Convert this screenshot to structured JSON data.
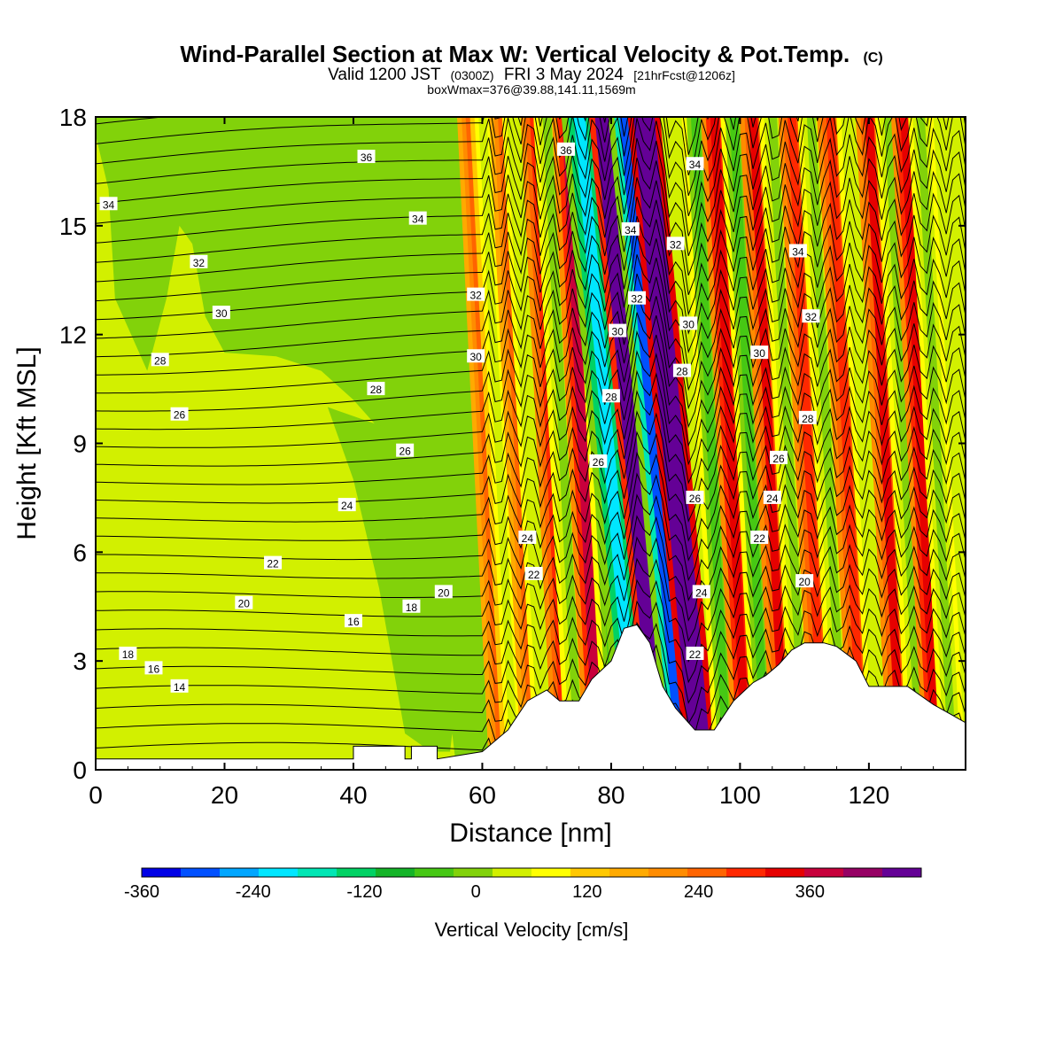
{
  "chart_data": {
    "type": "heatmap",
    "title": "Wind-Parallel Section at Max W: Vertical Velocity & Pot.Temp.",
    "title_mark": "(C)",
    "subtitle_parts": [
      "Valid 1200 JST",
      "(0300Z)",
      "FRI 3 May 2024",
      "[21hrFcst@1206z]"
    ],
    "subtitle2": "boxWmax=376@39.88,141.11,1569m",
    "xlabel": "Distance [nm]",
    "ylabel": "Height [Kft MSL]",
    "xlim": [
      0,
      135
    ],
    "ylim": [
      0,
      18
    ],
    "xticks": [
      0,
      20,
      40,
      60,
      80,
      100,
      120
    ],
    "yticks": [
      0,
      3,
      6,
      9,
      12,
      15,
      18
    ],
    "terrain": [
      [
        0,
        0.3
      ],
      [
        40,
        0.3
      ],
      [
        40,
        0.65
      ],
      [
        48,
        0.65
      ],
      [
        48,
        0.3
      ],
      [
        49,
        0.3
      ],
      [
        49,
        0.65
      ],
      [
        53,
        0.65
      ],
      [
        53,
        0.3
      ],
      [
        60,
        0.5
      ],
      [
        64,
        1.1
      ],
      [
        67,
        1.9
      ],
      [
        70,
        2.2
      ],
      [
        72,
        1.9
      ],
      [
        75,
        1.9
      ],
      [
        77,
        2.5
      ],
      [
        80,
        3.0
      ],
      [
        82,
        3.9
      ],
      [
        84,
        4.0
      ],
      [
        86,
        3.5
      ],
      [
        88,
        2.3
      ],
      [
        90,
        1.7
      ],
      [
        93,
        1.1
      ],
      [
        96,
        1.1
      ],
      [
        99,
        1.9
      ],
      [
        102,
        2.4
      ],
      [
        104,
        2.6
      ],
      [
        106,
        2.9
      ],
      [
        108,
        3.3
      ],
      [
        110,
        3.5
      ],
      [
        113,
        3.5
      ],
      [
        115,
        3.4
      ],
      [
        118,
        3.0
      ],
      [
        120,
        2.3
      ],
      [
        126,
        2.3
      ],
      [
        130,
        1.8
      ],
      [
        133,
        1.5
      ],
      [
        135,
        1.3
      ]
    ],
    "w_bands": [
      {
        "x": 63,
        "w": 1.4,
        "v": 60
      },
      {
        "x": 65,
        "w": 1.4,
        "v": -80
      },
      {
        "x": 68,
        "w": 1.4,
        "v": 80
      },
      {
        "x": 70,
        "w": 1.4,
        "v": -90
      },
      {
        "x": 73,
        "w": 1.5,
        "v": 110
      },
      {
        "x": 75,
        "w": 1.5,
        "v": -110
      },
      {
        "x": 78,
        "w": 1.6,
        "v": 170
      },
      {
        "x": 81,
        "w": 1.6,
        "v": -150
      },
      {
        "x": 84,
        "w": 2.0,
        "v": -260
      },
      {
        "x": 88,
        "w": 1.8,
        "v": 330
      },
      {
        "x": 91,
        "w": 1.8,
        "v": -330
      },
      {
        "x": 94,
        "w": 1.8,
        "v": 360
      },
      {
        "x": 98,
        "w": 1.5,
        "v": -140
      },
      {
        "x": 101,
        "w": 1.5,
        "v": 130
      },
      {
        "x": 104,
        "w": 1.5,
        "v": -130
      },
      {
        "x": 107,
        "w": 1.5,
        "v": 120
      },
      {
        "x": 110,
        "w": 1.5,
        "v": -120
      },
      {
        "x": 113,
        "w": 1.5,
        "v": 110
      },
      {
        "x": 116,
        "w": 1.5,
        "v": -100
      },
      {
        "x": 119,
        "w": 1.5,
        "v": 110
      },
      {
        "x": 122,
        "w": 1.5,
        "v": -90
      },
      {
        "x": 125,
        "w": 1.5,
        "v": 120
      },
      {
        "x": 128,
        "w": 1.5,
        "v": -100
      },
      {
        "x": 130.5,
        "w": 1.5,
        "v": 140
      },
      {
        "x": 133,
        "w": 1.4,
        "v": -100
      }
    ],
    "theta_labels": [
      {
        "x": 2,
        "y": 15.6,
        "t": "34"
      },
      {
        "x": 42,
        "y": 16.9,
        "t": "36"
      },
      {
        "x": 73,
        "y": 17.1,
        "t": "36"
      },
      {
        "x": 93,
        "y": 16.7,
        "t": "34"
      },
      {
        "x": 50,
        "y": 15.2,
        "t": "34"
      },
      {
        "x": 83,
        "y": 14.9,
        "t": "34"
      },
      {
        "x": 90,
        "y": 14.5,
        "t": "32"
      },
      {
        "x": 109,
        "y": 14.3,
        "t": "34"
      },
      {
        "x": 16,
        "y": 14.0,
        "t": "32"
      },
      {
        "x": 59,
        "y": 13.1,
        "t": "32"
      },
      {
        "x": 84,
        "y": 13.0,
        "t": "32"
      },
      {
        "x": 111,
        "y": 12.5,
        "t": "32"
      },
      {
        "x": 19.5,
        "y": 12.6,
        "t": "30"
      },
      {
        "x": 81,
        "y": 12.1,
        "t": "30"
      },
      {
        "x": 92,
        "y": 12.3,
        "t": "30"
      },
      {
        "x": 103,
        "y": 11.5,
        "t": "30"
      },
      {
        "x": 10,
        "y": 11.3,
        "t": "28"
      },
      {
        "x": 59,
        "y": 11.4,
        "t": "30"
      },
      {
        "x": 43.5,
        "y": 10.5,
        "t": "28"
      },
      {
        "x": 91,
        "y": 11.0,
        "t": "28"
      },
      {
        "x": 80,
        "y": 10.3,
        "t": "28"
      },
      {
        "x": 110.5,
        "y": 9.7,
        "t": "28"
      },
      {
        "x": 13,
        "y": 9.8,
        "t": "26"
      },
      {
        "x": 48,
        "y": 8.8,
        "t": "26"
      },
      {
        "x": 78,
        "y": 8.5,
        "t": "26"
      },
      {
        "x": 106,
        "y": 8.6,
        "t": "26"
      },
      {
        "x": 39,
        "y": 7.3,
        "t": "24"
      },
      {
        "x": 93,
        "y": 7.5,
        "t": "26"
      },
      {
        "x": 105,
        "y": 7.5,
        "t": "24"
      },
      {
        "x": 67,
        "y": 6.4,
        "t": "24"
      },
      {
        "x": 103,
        "y": 6.4,
        "t": "22"
      },
      {
        "x": 27.5,
        "y": 5.7,
        "t": "22"
      },
      {
        "x": 68,
        "y": 5.4,
        "t": "22"
      },
      {
        "x": 110,
        "y": 5.2,
        "t": "20"
      },
      {
        "x": 54,
        "y": 4.9,
        "t": "20"
      },
      {
        "x": 94,
        "y": 4.9,
        "t": "24"
      },
      {
        "x": 23,
        "y": 4.6,
        "t": "20"
      },
      {
        "x": 49,
        "y": 4.5,
        "t": "18"
      },
      {
        "x": 40,
        "y": 4.1,
        "t": "16"
      },
      {
        "x": 5,
        "y": 3.2,
        "t": "18"
      },
      {
        "x": 9,
        "y": 2.8,
        "t": "16"
      },
      {
        "x": 13,
        "y": 2.3,
        "t": "14"
      },
      {
        "x": 93,
        "y": 3.2,
        "t": "22"
      }
    ],
    "colorbar": {
      "label": "Vertical Velocity [cm/s]",
      "levels": [
        -360,
        -300,
        -240,
        -180,
        -120,
        -60,
        0,
        60,
        120,
        180,
        240,
        300,
        360,
        420
      ],
      "tick_labels": [
        "-360",
        "-240",
        "-120",
        "0",
        "120",
        "240",
        "360"
      ],
      "tick_values": [
        -360,
        -240,
        -120,
        0,
        120,
        240,
        360
      ],
      "colors": [
        "#0000e6",
        "#0050ff",
        "#00a6ff",
        "#00e6ff",
        "#00e6b4",
        "#00d264",
        "#14b428",
        "#46c814",
        "#82d20a",
        "#d2f000",
        "#ffff00",
        "#ffc800",
        "#ffaa00",
        "#ff8c00",
        "#ff6400",
        "#ff2800",
        "#e60000",
        "#c8003c",
        "#960064",
        "#640096"
      ]
    }
  }
}
